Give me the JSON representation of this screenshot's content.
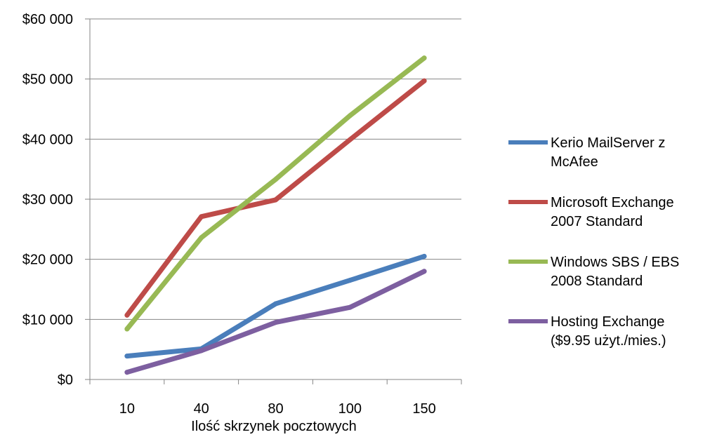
{
  "chart_data": {
    "type": "line",
    "title": "",
    "xlabel": "Ilość skrzynek pocztowych",
    "ylabel": "",
    "categories": [
      "10",
      "40",
      "80",
      "100",
      "150"
    ],
    "y_ticks": [
      "$0",
      "$10 000",
      "$20 000",
      "$30 000",
      "$40 000",
      "$50 000",
      "$60 000"
    ],
    "ylim": [
      0,
      60000
    ],
    "grid": "horizontal",
    "legend_position": "right",
    "series": [
      {
        "name_lines": [
          "Kerio MailServer z",
          "McAfee"
        ],
        "color": "#4a7ebb",
        "values": [
          3900,
          5100,
          12600,
          16500,
          20500
        ]
      },
      {
        "name_lines": [
          "Microsoft Exchange",
          "2007 Standard"
        ],
        "color": "#be4b48",
        "values": [
          10700,
          27100,
          29900,
          39900,
          49700
        ]
      },
      {
        "name_lines": [
          "Windows SBS / EBS",
          "2008 Standard"
        ],
        "color": "#98b954",
        "values": [
          8400,
          23600,
          33300,
          43900,
          53500
        ]
      },
      {
        "name_lines": [
          "Hosting Exchange",
          "($9.95 użyt./mies.)"
        ],
        "color": "#7d5fa0",
        "values": [
          1200,
          4800,
          9500,
          12000,
          18000
        ]
      }
    ]
  }
}
